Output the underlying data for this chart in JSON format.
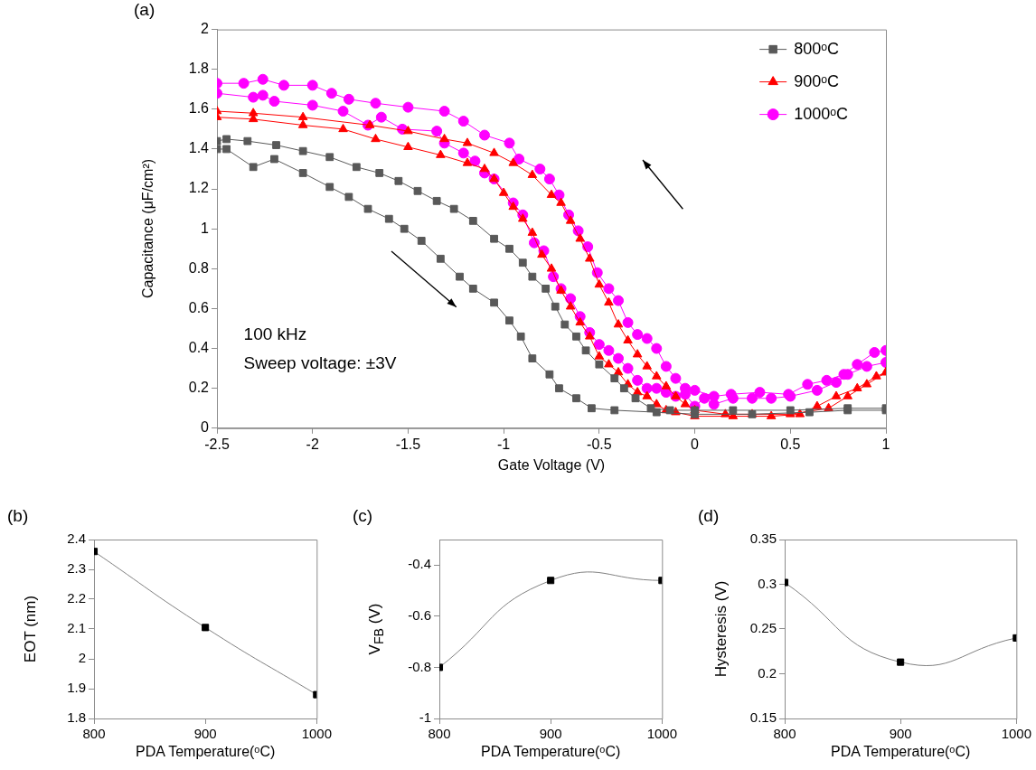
{
  "chart_data": [
    {
      "type": "line",
      "title": "(a)",
      "xlabel": "Gate Voltage (V)",
      "ylabel": "Capacitance (μF/cm²)",
      "xlim": [
        -2.5,
        1
      ],
      "xticks": [
        -2.5,
        -2,
        -1.5,
        -1,
        -0.5,
        0,
        0.5,
        1
      ],
      "ylim": [
        0,
        2
      ],
      "yticks": [
        0,
        0.2,
        0.4,
        0.6,
        0.8,
        1,
        1.2,
        1.4,
        1.6,
        1.8,
        2
      ],
      "legend": "top right",
      "line_style": "solid",
      "annotations": [
        "100 kHz",
        "Sweep voltage: ±3V"
      ],
      "series": [
        {
          "name": "800ᵒC",
          "color": "#595959",
          "marker": "square",
          "x": [
            -2.5,
            -2.45,
            -2.31,
            -2.2,
            -2.05,
            -1.91,
            -1.81,
            -1.71,
            -1.6,
            -1.52,
            -1.43,
            -1.33,
            -1.23,
            -1.16,
            -1.05,
            -0.97,
            -0.91,
            -0.85,
            -0.76,
            -0.71,
            -0.62,
            -0.54,
            -0.42,
            -0.2,
            0,
            0.3,
            0.6,
            0.8,
            1,
            1,
            0.8,
            0.5,
            0.2,
            0,
            -0.13,
            -0.23,
            -0.31,
            -0.37,
            -0.42,
            -0.5,
            -0.57,
            -0.62,
            -0.68,
            -0.73,
            -0.78,
            -0.85,
            -0.9,
            -0.97,
            -1.05,
            -1.16,
            -1.26,
            -1.35,
            -1.45,
            -1.55,
            -1.65,
            -1.77,
            -1.91,
            -2.05,
            -2.19,
            -2.34,
            -2.45,
            -2.5
          ],
          "values": [
            1.4,
            1.4,
            1.31,
            1.35,
            1.28,
            1.21,
            1.16,
            1.1,
            1.05,
            1,
            0.94,
            0.85,
            0.76,
            0.7,
            0.63,
            0.54,
            0.46,
            0.35,
            0.27,
            0.2,
            0.15,
            0.1,
            0.09,
            0.08,
            0.07,
            0.07,
            0.08,
            0.09,
            0.09,
            0.1,
            0.1,
            0.09,
            0.09,
            0.09,
            0.09,
            0.1,
            0.15,
            0.2,
            0.25,
            0.32,
            0.39,
            0.46,
            0.52,
            0.61,
            0.7,
            0.76,
            0.83,
            0.9,
            0.95,
            1.04,
            1.1,
            1.14,
            1.19,
            1.24,
            1.28,
            1.31,
            1.36,
            1.39,
            1.42,
            1.44,
            1.45,
            1.44
          ]
        },
        {
          "name": "900ᵒC",
          "color": "#ff0000",
          "marker": "triangle",
          "x": [
            -2.5,
            -2.31,
            -2.05,
            -1.84,
            -1.67,
            -1.5,
            -1.33,
            -1.19,
            -1.1,
            -1.05,
            -1,
            -0.95,
            -0.9,
            -0.85,
            -0.8,
            -0.75,
            -0.7,
            -0.65,
            -0.6,
            -0.55,
            -0.5,
            -0.45,
            -0.4,
            -0.35,
            -0.3,
            -0.25,
            -0.2,
            -0.15,
            -0.1,
            0,
            0.2,
            0.4,
            0.55,
            0.64,
            0.74,
            0.85,
            0.95,
            1,
            1,
            0.9,
            0.8,
            0.7,
            0.5,
            0.3,
            0.16,
            0,
            -0.05,
            -0.1,
            -0.15,
            -0.2,
            -0.25,
            -0.3,
            -0.35,
            -0.4,
            -0.45,
            -0.5,
            -0.55,
            -0.6,
            -0.65,
            -0.7,
            -0.75,
            -0.85,
            -0.95,
            -1.05,
            -1.19,
            -1.31,
            -1.5,
            -1.7,
            -2.05,
            -2.31,
            -2.5
          ],
          "values": [
            1.56,
            1.55,
            1.52,
            1.5,
            1.45,
            1.41,
            1.37,
            1.33,
            1.3,
            1.25,
            1.18,
            1.11,
            1.05,
            0.98,
            0.87,
            0.8,
            0.69,
            0.61,
            0.53,
            0.46,
            0.36,
            0.32,
            0.28,
            0.22,
            0.18,
            0.16,
            0.12,
            0.09,
            0.08,
            0.06,
            0.06,
            0.06,
            0.07,
            0.11,
            0.16,
            0.2,
            0.26,
            0.28,
            0.28,
            0.22,
            0.16,
            0.1,
            0.07,
            0.07,
            0.07,
            0.09,
            0.12,
            0.16,
            0.21,
            0.26,
            0.31,
            0.37,
            0.44,
            0.52,
            0.63,
            0.72,
            0.85,
            0.95,
            1.04,
            1.13,
            1.17,
            1.27,
            1.33,
            1.38,
            1.43,
            1.45,
            1.49,
            1.52,
            1.56,
            1.58,
            1.59
          ]
        },
        {
          "name": "1000ᵒC",
          "color": "#ff00ff",
          "marker": "circle",
          "x": [
            -2.5,
            -2.31,
            -2.26,
            -2.2,
            -2,
            -1.84,
            -1.71,
            -1.64,
            -1.53,
            -1.35,
            -1.31,
            -1.21,
            -1.15,
            -1.1,
            -1.05,
            -0.95,
            -0.9,
            -0.84,
            -0.79,
            -0.74,
            -0.7,
            -0.65,
            -0.6,
            -0.55,
            -0.5,
            -0.45,
            -0.4,
            -0.35,
            -0.3,
            -0.25,
            -0.2,
            -0.15,
            -0.1,
            -0.05,
            0,
            0.05,
            0.1,
            0.2,
            0.3,
            0.4,
            0.5,
            0.64,
            0.74,
            0.8,
            0.9,
            1,
            1,
            0.94,
            0.85,
            0.78,
            0.69,
            0.59,
            0.49,
            0.34,
            0.19,
            0.1,
            0,
            -0.05,
            -0.1,
            -0.15,
            -0.2,
            -0.25,
            -0.3,
            -0.35,
            -0.4,
            -0.45,
            -0.51,
            -0.56,
            -0.61,
            -0.66,
            -0.71,
            -0.76,
            -0.81,
            -0.92,
            -0.97,
            -1.1,
            -1.21,
            -1.31,
            -1.5,
            -1.67,
            -1.81,
            -1.9,
            -2,
            -2.15,
            -2.26,
            -2.36,
            -2.5
          ],
          "values": [
            1.68,
            1.66,
            1.67,
            1.64,
            1.62,
            1.59,
            1.52,
            1.56,
            1.5,
            1.49,
            1.43,
            1.38,
            1.34,
            1.28,
            1.25,
            1.13,
            1.07,
            0.93,
            0.89,
            0.76,
            0.7,
            0.65,
            0.56,
            0.48,
            0.42,
            0.39,
            0.35,
            0.3,
            0.24,
            0.2,
            0.2,
            0.18,
            0.16,
            0.17,
            0.11,
            0.15,
            0.12,
            0.15,
            0.15,
            0.15,
            0.16,
            0.19,
            0.23,
            0.27,
            0.31,
            0.33,
            0.39,
            0.38,
            0.32,
            0.27,
            0.24,
            0.22,
            0.17,
            0.18,
            0.17,
            0.16,
            0.19,
            0.2,
            0.25,
            0.31,
            0.4,
            0.45,
            0.47,
            0.53,
            0.64,
            0.7,
            0.78,
            0.91,
            0.99,
            1.07,
            1.17,
            1.25,
            1.3,
            1.35,
            1.43,
            1.47,
            1.54,
            1.59,
            1.61,
            1.63,
            1.65,
            1.68,
            1.72,
            1.72,
            1.75,
            1.73,
            1.73
          ]
        }
      ]
    },
    {
      "type": "line",
      "title": "(b)",
      "xlabel": "PDA Temperature(ᵒC)",
      "ylabel": "EOT (nm)",
      "x": [
        800,
        900,
        1000
      ],
      "xlim": [
        800,
        1000
      ],
      "xticks": [
        800,
        900,
        1000
      ],
      "ylim": [
        1.8,
        2.4
      ],
      "yticks": [
        1.8,
        1.9,
        2,
        2.1,
        2.2,
        2.3,
        2.4
      ],
      "marker": "square",
      "line_style": "solid",
      "series": [
        {
          "color": "#000000",
          "values": [
            2.36,
            2.105,
            1.88
          ]
        }
      ]
    },
    {
      "type": "line",
      "title": "(c)",
      "xlabel": "PDA Temperature(ᵒC)",
      "ylabel": "V$_{FB}$ (V)",
      "x": [
        800,
        900,
        1000
      ],
      "xlim": [
        800,
        1000
      ],
      "xticks": [
        800,
        900,
        1000
      ],
      "ylim": [
        -1,
        -0.3
      ],
      "yticks": [
        -1,
        -0.8,
        -0.6,
        -0.4
      ],
      "marker": "square",
      "line_style": "solid",
      "series": [
        {
          "color": "#000000",
          "values": [
            -0.8,
            -0.46,
            -0.46
          ]
        }
      ]
    },
    {
      "type": "line",
      "title": "(d)",
      "xlabel": "PDA Temperature(ᵒC)",
      "ylabel": "Hysteresis  (V)",
      "x": [
        800,
        900,
        1000
      ],
      "xlim": [
        800,
        1000
      ],
      "xticks": [
        800,
        900,
        1000
      ],
      "ylim": [
        0.15,
        0.35
      ],
      "yticks": [
        0.15,
        0.2,
        0.25,
        0.3,
        0.35
      ],
      "marker": "square",
      "line_style": "solid",
      "series": [
        {
          "color": "#000000",
          "values": [
            0.302,
            0.213,
            0.24
          ]
        }
      ]
    }
  ]
}
